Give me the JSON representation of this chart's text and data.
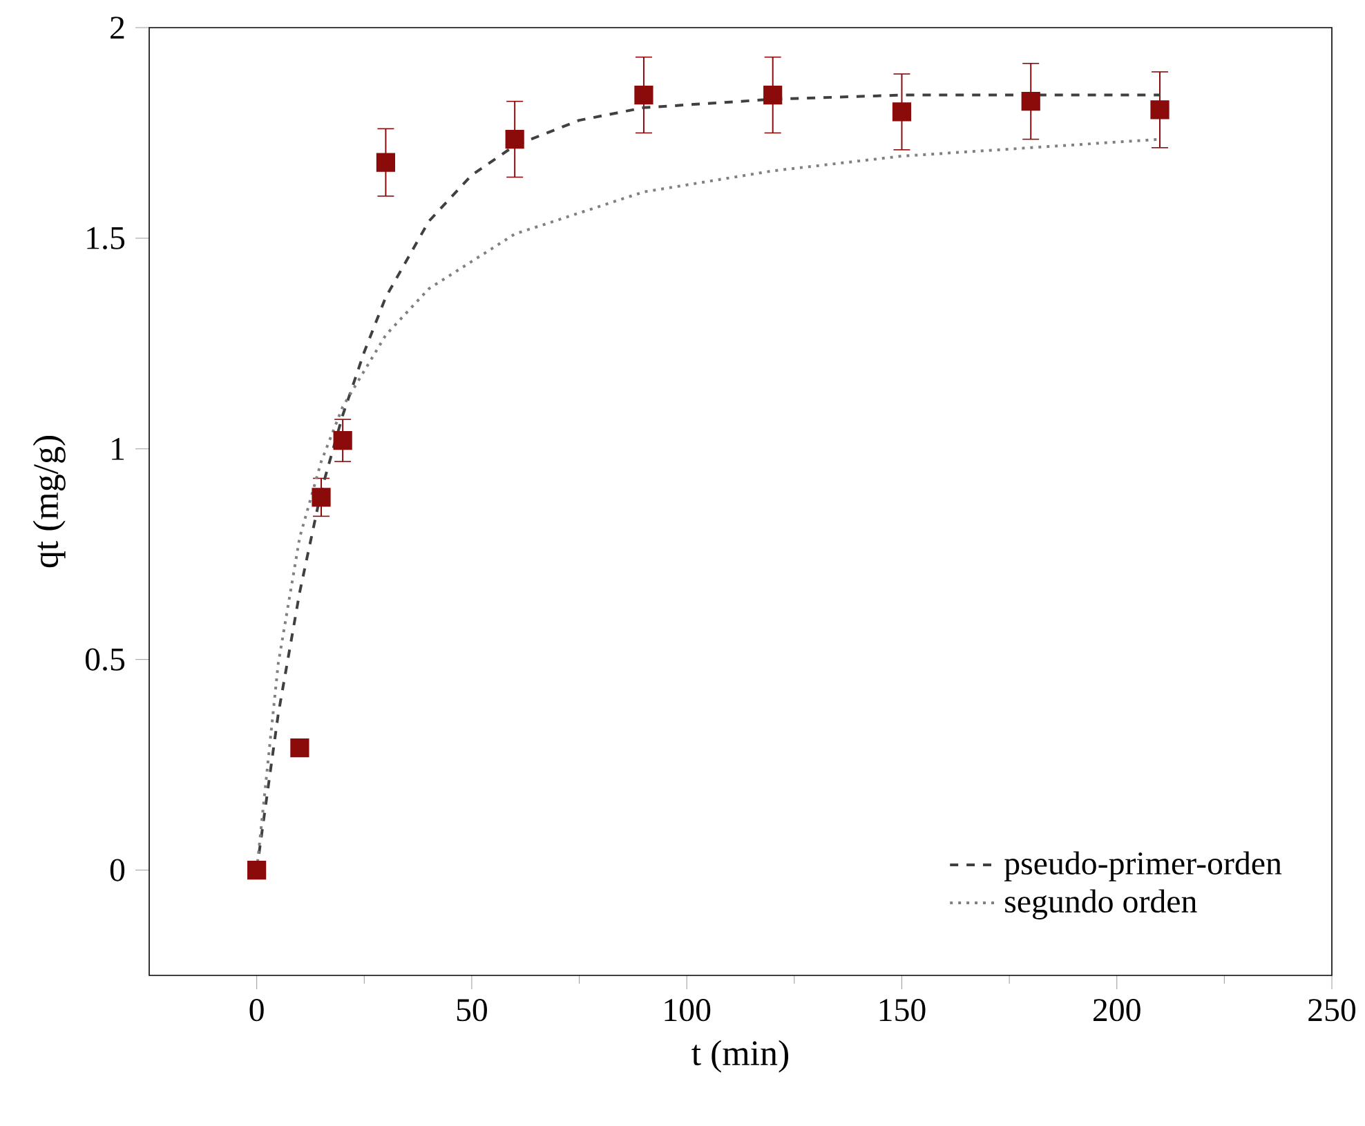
{
  "chart_data": {
    "type": "scatter",
    "xlabel": "t (min)",
    "ylabel": "qt (mg/g)",
    "xlim": [
      -25,
      250
    ],
    "ylim": [
      -0.25,
      2
    ],
    "xticks": [
      0,
      50,
      100,
      150,
      200,
      250
    ],
    "yticks": [
      0,
      0.5,
      1,
      1.5,
      2
    ],
    "legend": "bottom right",
    "grid": false,
    "series": [
      {
        "marker": "square",
        "color": "#8b0a0a",
        "x": [
          0,
          10,
          15,
          20,
          30,
          60,
          90,
          120,
          150,
          180,
          210
        ],
        "values": [
          0,
          0.29,
          0.885,
          1.02,
          1.68,
          1.735,
          1.84,
          1.84,
          1.8,
          1.825,
          1.805
        ],
        "errors": [
          null,
          null,
          0.045,
          0.05,
          0.08,
          0.09,
          0.09,
          0.09,
          0.09,
          0.09,
          0.09
        ]
      },
      {
        "type": "line",
        "name": "pseudo-primer-orden",
        "color": "#404040",
        "line_style": "dashed",
        "x": [
          0,
          5,
          10,
          15,
          20,
          25,
          30,
          40,
          50,
          60,
          75,
          90,
          120,
          150,
          180,
          210
        ],
        "values": [
          0,
          0.37,
          0.66,
          0.9,
          1.08,
          1.23,
          1.36,
          1.54,
          1.65,
          1.72,
          1.78,
          1.81,
          1.83,
          1.84,
          1.84,
          1.84
        ]
      },
      {
        "type": "line",
        "name": "segundo orden",
        "color": "#808080",
        "line_style": "dotted",
        "x": [
          0,
          5,
          10,
          15,
          20,
          30,
          40,
          60,
          90,
          120,
          150,
          180,
          210
        ],
        "values": [
          0,
          0.49,
          0.79,
          0.97,
          1.1,
          1.27,
          1.38,
          1.51,
          1.61,
          1.66,
          1.695,
          1.715,
          1.735
        ]
      }
    ]
  }
}
